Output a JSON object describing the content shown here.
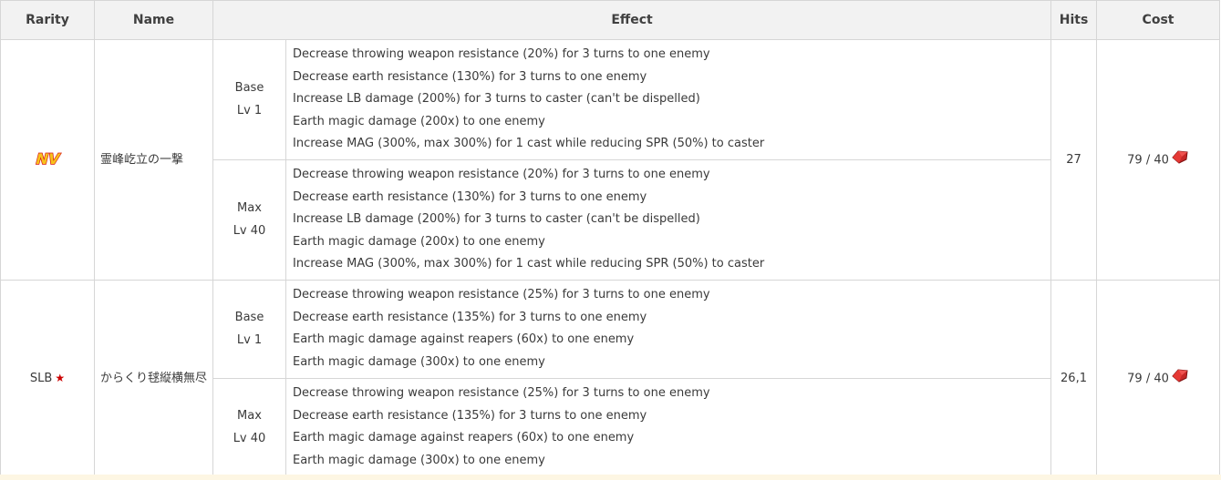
{
  "headers": {
    "rarity": "Rarity",
    "name": "Name",
    "effect": "Effect",
    "hits": "Hits",
    "cost": "Cost"
  },
  "rows": [
    {
      "rarity_label": "NV",
      "rarity_icon": "nv-logo-icon",
      "name": "霊峰屹立の一撃",
      "hits": "27",
      "cost": "79 / 40",
      "levels": [
        {
          "label_top": "Base",
          "label_bottom": "Lv 1",
          "effects": [
            "Decrease throwing weapon resistance (20%) for 3 turns to one enemy",
            "Decrease earth resistance (130%) for 3 turns to one enemy",
            "Increase LB damage (200%) for 3 turns to caster (can't be dispelled)",
            "Earth magic damage (200x) to one enemy",
            "Increase MAG (300%, max 300%) for 1 cast while reducing SPR (50%) to caster"
          ]
        },
        {
          "label_top": "Max",
          "label_bottom": "Lv 40",
          "effects": [
            "Decrease throwing weapon resistance (20%) for 3 turns to one enemy",
            "Decrease earth resistance (130%) for 3 turns to one enemy",
            "Increase LB damage (200%) for 3 turns to caster (can't be dispelled)",
            "Earth magic damage (200x) to one enemy",
            "Increase MAG (300%, max 300%) for 1 cast while reducing SPR (50%) to caster"
          ]
        }
      ]
    },
    {
      "rarity_label": "SLB",
      "rarity_icon": "star-icon",
      "star": "★",
      "name": "からくり毬縦横無尽",
      "hits": "26,1",
      "cost": "79 / 40",
      "levels": [
        {
          "label_top": "Base",
          "label_bottom": "Lv 1",
          "effects": [
            "Decrease throwing weapon resistance (25%) for 3 turns to one enemy",
            "Decrease earth resistance (135%) for 3 turns to one enemy",
            "Earth magic damage against reapers (60x) to one enemy",
            "Earth magic damage (300x) to one enemy"
          ]
        },
        {
          "label_top": "Max",
          "label_bottom": "Lv 40",
          "effects": [
            "Decrease throwing weapon resistance (25%) for 3 turns to one enemy",
            "Decrease earth resistance (135%) for 3 turns to one enemy",
            "Earth magic damage against reapers (60x) to one enemy",
            "Earth magic damage (300x) to one enemy"
          ]
        }
      ]
    }
  ],
  "colors": {
    "header_bg": "#f2f2f2",
    "border": "#d6d6d6",
    "star": "#cc0000",
    "gem": "#c62828",
    "nv_gold": "#f7c21b",
    "nv_red": "#d81a1a"
  }
}
